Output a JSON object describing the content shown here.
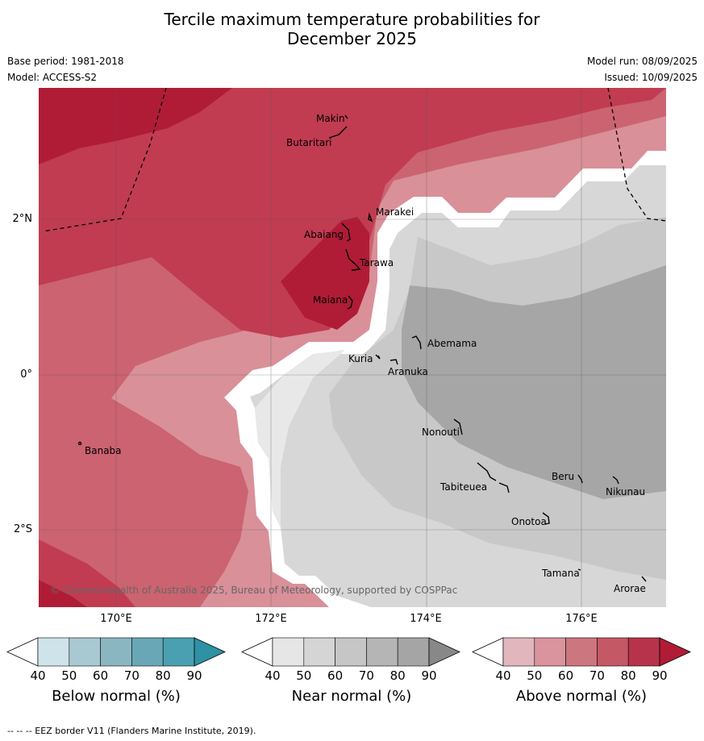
{
  "title": {
    "line1": "Tercile maximum temperature probabilities for",
    "line2": "December 2025"
  },
  "meta": {
    "base_period": "Base period: 1981-2018",
    "model": "Model: ACCESS-S2",
    "model_run": "Model run: 08/09/2025",
    "issued": "Issued: 10/09/2025"
  },
  "map": {
    "lat_labels": [
      "2°N",
      "0°",
      "2°S"
    ],
    "lon_labels": [
      "170°E",
      "172°E",
      "174°E",
      "176°E"
    ],
    "copyright": "© Commonwealth of Australia 2025, Bureau of Meteorology, supported by COSPPac",
    "places": [
      "Makin",
      "Butaritari",
      "Marakei",
      "Abaiang",
      "Tarawa",
      "Maiana",
      "Abemama",
      "Kuria",
      "Aranuka",
      "Banaba",
      "Nonouti",
      "Tabiteuea",
      "Beru",
      "Nikunau",
      "Onotoa",
      "Tamana",
      "Arorae"
    ],
    "colors": {
      "above_90": "#b01c36",
      "above_80": "#c13c51",
      "above_70": "#cc6370",
      "above_60": "#d99099",
      "near_50": "#d7d7d7",
      "near_60": "#c8c8c8",
      "near_70": "#a6a6a6",
      "near_40": "#e8e8e8"
    }
  },
  "colorbars": [
    {
      "label": "Below normal (%)",
      "ticks": [
        "40",
        "50",
        "60",
        "70",
        "80",
        "90"
      ],
      "colors": [
        "#cfe3ea",
        "#a8c9d2",
        "#8ab6c2",
        "#6aa7b6",
        "#4aa0b1",
        "#2e91a4"
      ]
    },
    {
      "label": "Near normal (%)",
      "ticks": [
        "40",
        "50",
        "60",
        "70",
        "80",
        "90"
      ],
      "colors": [
        "#e6e6e6",
        "#d5d5d5",
        "#c6c6c6",
        "#b5b5b5",
        "#a5a5a5",
        "#888888"
      ]
    },
    {
      "label": "Above normal (%)",
      "ticks": [
        "40",
        "50",
        "60",
        "70",
        "80",
        "90"
      ],
      "colors": [
        "#e2b6bd",
        "#d9949d",
        "#cc7680",
        "#c45865",
        "#b7334b",
        "#b01c36"
      ]
    }
  ],
  "footnote": "-- -- -- EEZ border V11 (Flanders Marine Institute, 2019)."
}
